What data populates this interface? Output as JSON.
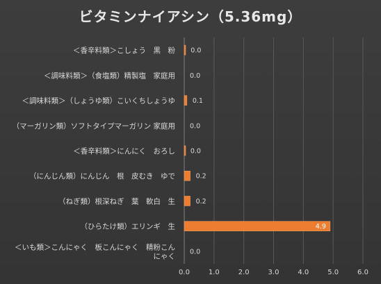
{
  "chart_data": {
    "type": "bar",
    "orientation": "horizontal",
    "title": "ビタミンナイアシン（5.36mg）",
    "categories": [
      "＜香辛料類＞こしょう　黒　粉",
      "＜調味料類＞（食塩類）精製塩　家庭用",
      "＜調味料類＞（しょうゆ類）こいくちしょうゆ",
      "（マーガリン類）ソフトタイプマーガリン 家庭用",
      "＜香辛料類＞にんにく　おろし",
      "（にんじん類）にんじん　根　皮むき　ゆで",
      "（ねぎ類）根深ねぎ　葉　軟白　生",
      "（ひらたけ類）エリンギ　生",
      "＜いも類＞こんにゃく　板こんにゃく　精粉こんにゃく"
    ],
    "category_lines": [
      [
        "＜香辛料類＞こしょう　黒　粉"
      ],
      [
        "＜調味料類＞（食塩類）精製塩　家庭用"
      ],
      [
        "＜調味料類＞（しょうゆ類）こいくちしょうゆ"
      ],
      [
        "（マーガリン類）ソフトタイプマーガリン 家庭用"
      ],
      [
        "＜香辛料類＞にんにく　おろし"
      ],
      [
        "（にんじん類）にんじん　根　皮むき　ゆで"
      ],
      [
        "（ねぎ類）根深ねぎ　葉　軟白　生"
      ],
      [
        "（ひらたけ類）エリンギ　生"
      ],
      [
        "＜いも類＞こんにゃく　板こんにゃく　精粉こん",
        "にゃく"
      ]
    ],
    "values": [
      0.03,
      0.0,
      0.09,
      0.0,
      0.02,
      0.2,
      0.2,
      4.9,
      0.0
    ],
    "value_labels": [
      "0.0",
      "0.0",
      "0.1",
      "0.0",
      "0.0",
      "0.2",
      "0.2",
      "4.9",
      "0.0"
    ],
    "xlim": [
      0,
      6
    ],
    "xticks": [
      "0.0",
      "1.0",
      "2.0",
      "3.0",
      "4.0",
      "5.0",
      "6.0"
    ],
    "grid": true,
    "colors": {
      "bar": "#ed7d31",
      "bar_edge": "#f4a46a",
      "grid": "#595959",
      "text": "#d9d9d9",
      "inside_label": "#ffffff"
    }
  }
}
